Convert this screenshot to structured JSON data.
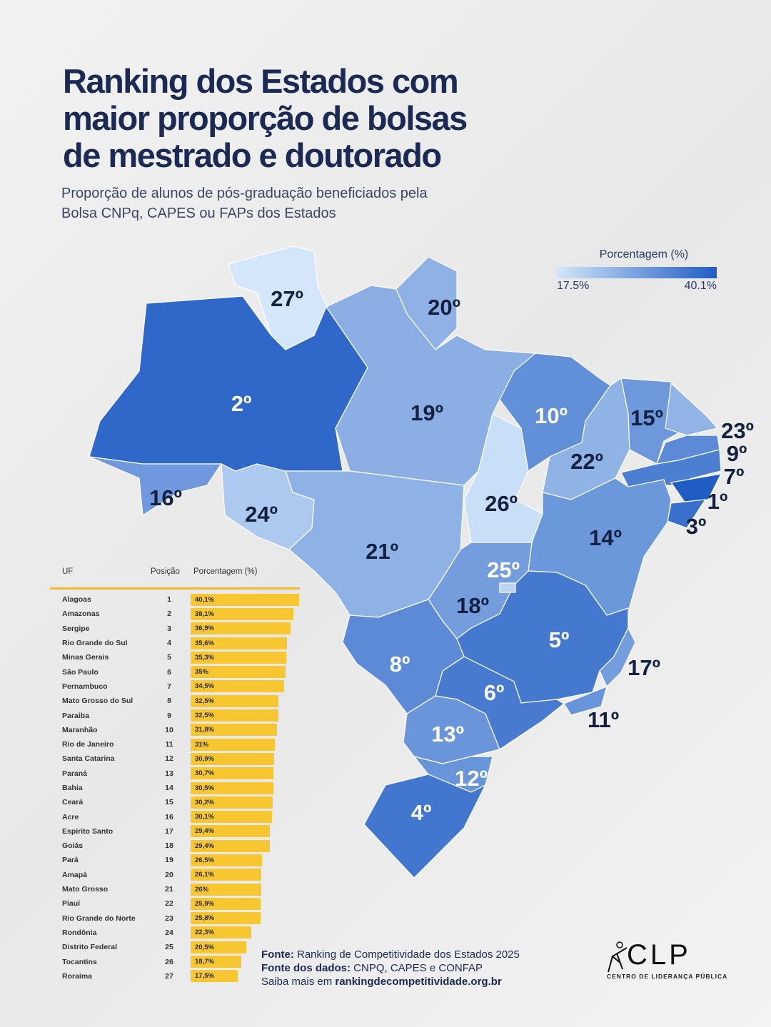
{
  "title": "Ranking dos Estados com maior proporção de bolsas de mestrado e doutorado",
  "title_lines": [
    "Ranking dos Estados com",
    "maior proporção de bolsas",
    "de mestrado e doutorado"
  ],
  "subtitle_lines": [
    "Proporção de alunos de pós-graduação beneficiados pela",
    "Bolsa CNPq, CAPES ou FAPs dos Estados"
  ],
  "legend": {
    "title": "Porcentagem (%)",
    "min_label": "17.5%",
    "max_label": "40.1%",
    "min_color": "#d3e6fa",
    "max_color": "#1f5cc4"
  },
  "table": {
    "headers": [
      "UF",
      "Posição",
      "Porcentagem (%)"
    ],
    "bar_color": "#f7c631"
  },
  "chart_data": {
    "type": "table",
    "title": "Ranking dos Estados com maior proporção de bolsas de mestrado e doutorado",
    "columns": [
      "UF",
      "Posição",
      "Porcentagem (%)"
    ],
    "rows": [
      {
        "uf": "Alagoas",
        "pos": 1,
        "value": 40.1,
        "label": "40,1%"
      },
      {
        "uf": "Amazonas",
        "pos": 2,
        "value": 38.1,
        "label": "38,1%"
      },
      {
        "uf": "Sergipe",
        "pos": 3,
        "value": 36.9,
        "label": "36,9%"
      },
      {
        "uf": "Rio Grande do Sul",
        "pos": 4,
        "value": 35.6,
        "label": "35,6%"
      },
      {
        "uf": "Minas Gerais",
        "pos": 5,
        "value": 35.3,
        "label": "35,3%"
      },
      {
        "uf": "São Paulo",
        "pos": 6,
        "value": 35,
        "label": "35%"
      },
      {
        "uf": "Pernambuco",
        "pos": 7,
        "value": 34.5,
        "label": "34,5%"
      },
      {
        "uf": "Mato Grosso do Sul",
        "pos": 8,
        "value": 32.5,
        "label": "32,5%"
      },
      {
        "uf": "Paraiba",
        "pos": 9,
        "value": 32.5,
        "label": "32,5%"
      },
      {
        "uf": "Maranhão",
        "pos": 10,
        "value": 31.8,
        "label": "31,8%"
      },
      {
        "uf": "Rio de Janeiro",
        "pos": 11,
        "value": 31,
        "label": "31%"
      },
      {
        "uf": "Santa Catarina",
        "pos": 12,
        "value": 30.9,
        "label": "30,9%"
      },
      {
        "uf": "Paraná",
        "pos": 13,
        "value": 30.7,
        "label": "30,7%"
      },
      {
        "uf": "Bahia",
        "pos": 14,
        "value": 30.5,
        "label": "30,5%"
      },
      {
        "uf": "Ceará",
        "pos": 15,
        "value": 30.2,
        "label": "30,2%"
      },
      {
        "uf": "Acre",
        "pos": 16,
        "value": 30.1,
        "label": "30,1%"
      },
      {
        "uf": "Espirito Santo",
        "pos": 17,
        "value": 29.4,
        "label": "29,4%"
      },
      {
        "uf": "Goiás",
        "pos": 18,
        "value": 29.4,
        "label": "29,4%"
      },
      {
        "uf": "Pará",
        "pos": 19,
        "value": 26.5,
        "label": "26,5%"
      },
      {
        "uf": "Amapá",
        "pos": 20,
        "value": 26.1,
        "label": "26,1%"
      },
      {
        "uf": "Mato Grosso",
        "pos": 21,
        "value": 26,
        "label": "26%"
      },
      {
        "uf": "Piauí",
        "pos": 22,
        "value": 25.9,
        "label": "25,9%"
      },
      {
        "uf": "Rio Grande do Norte",
        "pos": 23,
        "value": 25.8,
        "label": "25,8%"
      },
      {
        "uf": "Rondônia",
        "pos": 24,
        "value": 22.3,
        "label": "22,3%"
      },
      {
        "uf": "Distrito Federal",
        "pos": 25,
        "value": 20.5,
        "label": "20,5%"
      },
      {
        "uf": "Tocantins",
        "pos": 26,
        "value": 18.7,
        "label": "18,7%"
      },
      {
        "uf": "Roraima",
        "pos": 27,
        "value": 17.5,
        "label": "17,5%"
      }
    ],
    "xlim": [
      0,
      40.1
    ]
  },
  "map_labels": {
    "Roraima": "27º",
    "Amapá": "20º",
    "Amazonas": "2º",
    "Pará": "19º",
    "Acre": "16º",
    "Rondônia": "24º",
    "Mato Grosso": "21º",
    "Tocantins": "26º",
    "Maranhão": "10º",
    "Piauí": "22º",
    "Ceará": "15º",
    "Rio Grande do Norte": "23º",
    "Paraiba": "9º",
    "Pernambuco": "7º",
    "Alagoas": "1º",
    "Sergipe": "3º",
    "Bahia": "14º",
    "Distrito Federal": "25º",
    "Goiás": "18º",
    "Minas Gerais": "5º",
    "Espirito Santo": "17º",
    "Rio de Janeiro": "11º",
    "São Paulo": "6º",
    "Mato Grosso do Sul": "8º",
    "Paraná": "13º",
    "Santa Catarina": "12º",
    "Rio Grande do Sul": "4º"
  },
  "source": {
    "fonte_label": "Fonte:",
    "fonte_text": " Ranking de Competitividade dos Estados 2025",
    "dados_label": "Fonte dos dados:",
    "dados_text": "  CNPQ, CAPES e CONFAP",
    "saiba_text": "Saiba mais em ",
    "saiba_link": "rankingdecompetitividade.org.br"
  },
  "logo": {
    "name": "CLP",
    "full_name": "CENTRO DE LIDERANÇA PÚBLICA"
  }
}
